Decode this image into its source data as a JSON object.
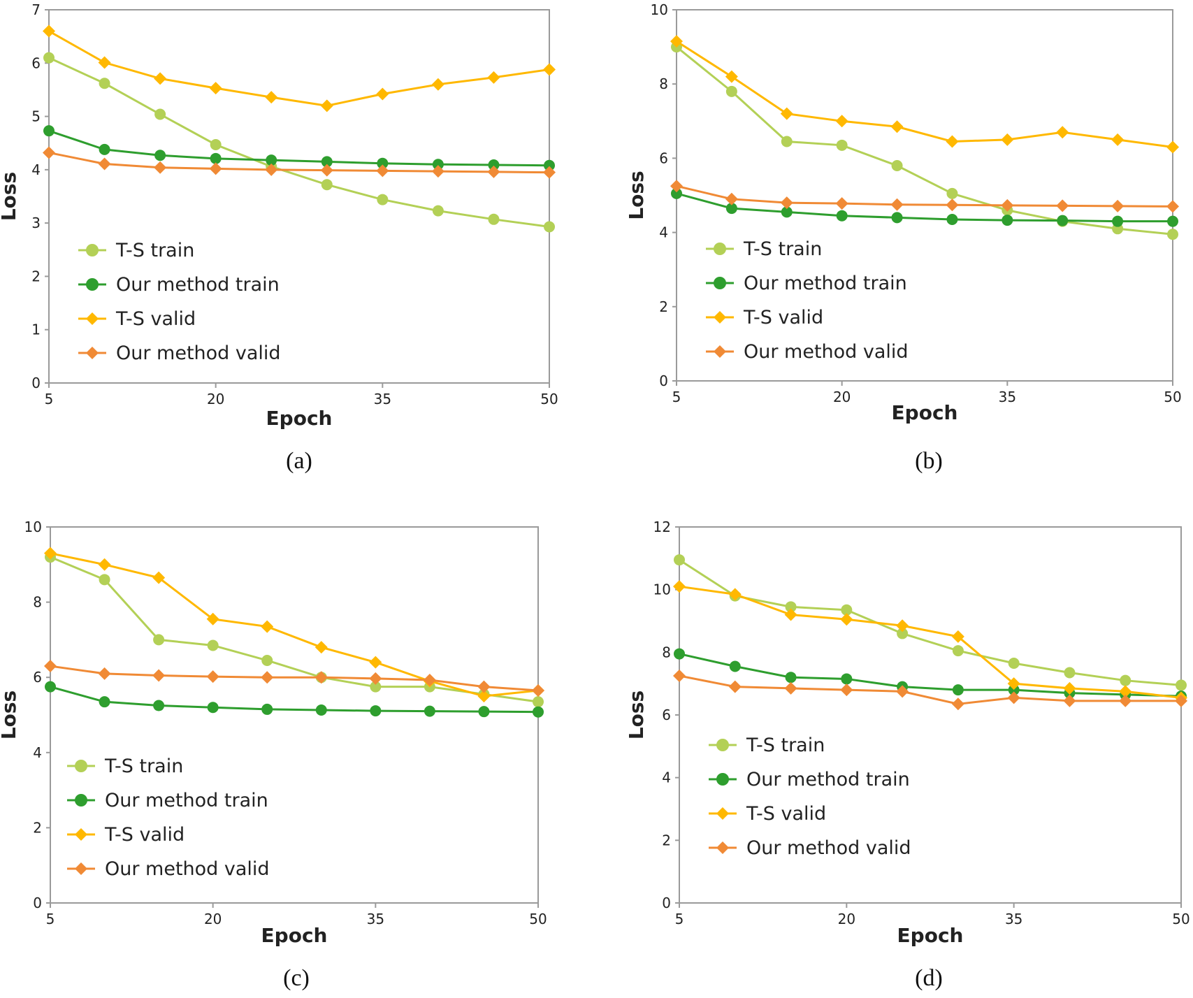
{
  "colors": {
    "ts_train": "#B3D056",
    "our_train": "#2E9E2E",
    "ts_valid": "#FFB800",
    "our_valid": "#F08A35",
    "frame": "#9a9a9a"
  },
  "chart_data": [
    {
      "type": "line",
      "caption": "(a)",
      "xlabel": "Epoch",
      "ylabel": "Loss",
      "x": [
        5,
        10,
        15,
        20,
        25,
        30,
        35,
        40,
        45,
        50
      ],
      "xticks": [
        "5",
        "20",
        "35",
        "50"
      ],
      "xlim": [
        5,
        50
      ],
      "ylim": [
        0,
        7
      ],
      "yticks": [
        "0",
        "1",
        "2",
        "3",
        "4",
        "5",
        "6",
        "7"
      ],
      "legend_position": "lower-left",
      "series": [
        {
          "name": "T-S train",
          "key": "ts_train",
          "marker": "circle",
          "values": [
            6.1,
            5.62,
            5.04,
            4.47,
            4.06,
            3.72,
            3.44,
            3.23,
            3.07,
            2.93
          ]
        },
        {
          "name": "Our method train",
          "key": "our_train",
          "marker": "circle",
          "values": [
            4.73,
            4.38,
            4.27,
            4.21,
            4.18,
            4.15,
            4.12,
            4.1,
            4.09,
            4.08
          ]
        },
        {
          "name": "T-S valid",
          "key": "ts_valid",
          "marker": "diamond",
          "values": [
            6.6,
            6.01,
            5.71,
            5.53,
            5.36,
            5.2,
            5.42,
            5.6,
            5.73,
            5.88
          ]
        },
        {
          "name": "Our method valid",
          "key": "our_valid",
          "marker": "diamond",
          "values": [
            4.32,
            4.11,
            4.04,
            4.02,
            4.0,
            3.99,
            3.98,
            3.97,
            3.96,
            3.95
          ]
        }
      ]
    },
    {
      "type": "line",
      "caption": "(b)",
      "xlabel": "Epoch",
      "ylabel": "Loss",
      "x": [
        5,
        10,
        15,
        20,
        25,
        30,
        35,
        40,
        45,
        50
      ],
      "xticks": [
        "5",
        "20",
        "35",
        "50"
      ],
      "xlim": [
        5,
        50
      ],
      "ylim": [
        0,
        10
      ],
      "yticks": [
        "0",
        "2",
        "4",
        "6",
        "8",
        "10"
      ],
      "legend_position": "lower-left",
      "series": [
        {
          "name": "T-S train",
          "key": "ts_train",
          "marker": "circle",
          "values": [
            9.0,
            7.8,
            6.45,
            6.35,
            5.8,
            5.05,
            4.6,
            4.3,
            4.1,
            3.95
          ]
        },
        {
          "name": "Our method train",
          "key": "our_train",
          "marker": "circle",
          "values": [
            5.05,
            4.65,
            4.55,
            4.45,
            4.4,
            4.35,
            4.33,
            4.32,
            4.3,
            4.3
          ]
        },
        {
          "name": "T-S valid",
          "key": "ts_valid",
          "marker": "diamond",
          "values": [
            9.15,
            8.2,
            7.2,
            7.0,
            6.85,
            6.45,
            6.5,
            6.7,
            6.5,
            6.3
          ]
        },
        {
          "name": "Our method valid",
          "key": "our_valid",
          "marker": "diamond",
          "values": [
            5.25,
            4.9,
            4.8,
            4.78,
            4.75,
            4.74,
            4.73,
            4.72,
            4.71,
            4.7
          ]
        }
      ]
    },
    {
      "type": "line",
      "caption": "(c)",
      "xlabel": "Epoch",
      "ylabel": "Loss",
      "x": [
        5,
        10,
        15,
        20,
        25,
        30,
        35,
        40,
        45,
        50
      ],
      "xticks": [
        "5",
        "20",
        "35",
        "50"
      ],
      "xlim": [
        5,
        50
      ],
      "ylim": [
        0,
        10
      ],
      "yticks": [
        "0",
        "2",
        "4",
        "6",
        "8",
        "10"
      ],
      "legend_position": "lower-left",
      "series": [
        {
          "name": "T-S train",
          "key": "ts_train",
          "marker": "circle",
          "values": [
            9.2,
            8.6,
            7.0,
            6.85,
            6.45,
            6.0,
            5.75,
            5.75,
            5.55,
            5.35
          ]
        },
        {
          "name": "Our method train",
          "key": "our_train",
          "marker": "circle",
          "values": [
            5.75,
            5.35,
            5.25,
            5.2,
            5.15,
            5.13,
            5.11,
            5.1,
            5.09,
            5.08
          ]
        },
        {
          "name": "T-S valid",
          "key": "ts_valid",
          "marker": "diamond",
          "values": [
            9.3,
            9.0,
            8.65,
            7.55,
            7.35,
            6.8,
            6.4,
            5.9,
            5.5,
            5.65
          ]
        },
        {
          "name": "Our method valid",
          "key": "our_valid",
          "marker": "diamond",
          "values": [
            6.3,
            6.1,
            6.05,
            6.02,
            6.0,
            6.0,
            5.97,
            5.93,
            5.75,
            5.65
          ]
        }
      ]
    },
    {
      "type": "line",
      "caption": "(d)",
      "xlabel": "Epoch",
      "ylabel": "Loss",
      "x": [
        5,
        10,
        15,
        20,
        25,
        30,
        35,
        40,
        45,
        50
      ],
      "xticks": [
        "5",
        "20",
        "35",
        "50"
      ],
      "xlim": [
        5,
        50
      ],
      "ylim": [
        0,
        12
      ],
      "yticks": [
        "0",
        "2",
        "4",
        "6",
        "8",
        "10",
        "12"
      ],
      "legend_position": "lower-left",
      "series": [
        {
          "name": "T-S train",
          "key": "ts_train",
          "marker": "circle",
          "values": [
            10.95,
            9.8,
            9.45,
            9.35,
            8.6,
            8.05,
            7.65,
            7.35,
            7.1,
            6.95
          ]
        },
        {
          "name": "Our method train",
          "key": "our_train",
          "marker": "circle",
          "values": [
            7.95,
            7.55,
            7.2,
            7.15,
            6.9,
            6.8,
            6.8,
            6.7,
            6.65,
            6.6
          ]
        },
        {
          "name": "T-S valid",
          "key": "ts_valid",
          "marker": "diamond",
          "values": [
            10.1,
            9.85,
            9.2,
            9.05,
            8.85,
            8.5,
            7.0,
            6.85,
            6.75,
            6.55
          ]
        },
        {
          "name": "Our method valid",
          "key": "our_valid",
          "marker": "diamond",
          "values": [
            7.25,
            6.9,
            6.85,
            6.8,
            6.75,
            6.35,
            6.55,
            6.45,
            6.45,
            6.45
          ]
        }
      ]
    }
  ]
}
